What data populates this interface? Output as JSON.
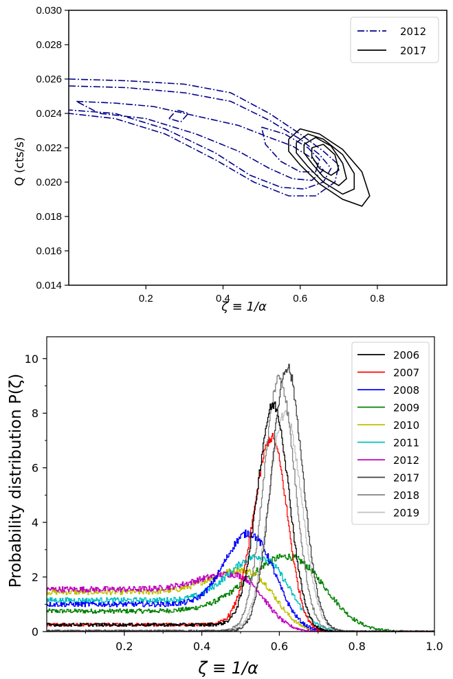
{
  "chart_data": [
    {
      "type": "contour",
      "xlabel": "ζ ≡ 1/α",
      "ylabel": "Q (cts/s)",
      "xlim": [
        0.0,
        0.98
      ],
      "ylim": [
        0.014,
        0.03
      ],
      "xticks": [
        0.2,
        0.4,
        0.6,
        0.8
      ],
      "xtick_labels": [
        "0.2",
        "0.4",
        "0.6",
        "0.8"
      ],
      "yticks": [
        0.014,
        0.016,
        0.018,
        0.02,
        0.022,
        0.024,
        0.026,
        0.028,
        0.03
      ],
      "ytick_labels": [
        "0.014",
        "0.016",
        "0.018",
        "0.020",
        "0.022",
        "0.024",
        "0.026",
        "0.028",
        "0.030"
      ],
      "legend_position": "top-right",
      "series": [
        {
          "name": "2012",
          "color": "#00008b",
          "linestyle": "dash-dot",
          "contours": [
            [
              [
                0.0,
                0.026
              ],
              [
                0.15,
                0.0259
              ],
              [
                0.3,
                0.0257
              ],
              [
                0.42,
                0.0252
              ],
              [
                0.52,
                0.024
              ],
              [
                0.6,
                0.0228
              ],
              [
                0.66,
                0.0218
              ],
              [
                0.7,
                0.021
              ],
              [
                0.69,
                0.02
              ],
              [
                0.64,
                0.0192
              ],
              [
                0.57,
                0.0192
              ],
              [
                0.48,
                0.02
              ],
              [
                0.38,
                0.0213
              ],
              [
                0.25,
                0.0228
              ],
              [
                0.12,
                0.0237
              ],
              [
                0.0,
                0.024
              ]
            ],
            [
              [
                0.0,
                0.0256
              ],
              [
                0.15,
                0.0255
              ],
              [
                0.3,
                0.0252
              ],
              [
                0.42,
                0.0247
              ],
              [
                0.52,
                0.0236
              ],
              [
                0.6,
                0.0225
              ],
              [
                0.65,
                0.0216
              ],
              [
                0.68,
                0.0208
              ],
              [
                0.66,
                0.02
              ],
              [
                0.61,
                0.0196
              ],
              [
                0.55,
                0.0197
              ],
              [
                0.47,
                0.0204
              ],
              [
                0.38,
                0.0217
              ],
              [
                0.25,
                0.0231
              ],
              [
                0.12,
                0.024
              ],
              [
                0.0,
                0.0242
              ]
            ],
            [
              [
                0.02,
                0.0247
              ],
              [
                0.12,
                0.0246
              ],
              [
                0.22,
                0.0244
              ],
              [
                0.34,
                0.0238
              ],
              [
                0.44,
                0.0233
              ],
              [
                0.52,
                0.0226
              ],
              [
                0.58,
                0.0221
              ],
              [
                0.63,
                0.0214
              ],
              [
                0.66,
                0.0207
              ],
              [
                0.63,
                0.0201
              ],
              [
                0.58,
                0.0202
              ],
              [
                0.52,
                0.0208
              ],
              [
                0.44,
                0.0218
              ],
              [
                0.33,
                0.0228
              ],
              [
                0.2,
                0.0237
              ],
              [
                0.08,
                0.024
              ],
              [
                0.02,
                0.0247
              ]
            ],
            [
              [
                0.5,
                0.0232
              ],
              [
                0.56,
                0.0228
              ],
              [
                0.62,
                0.022
              ],
              [
                0.65,
                0.0213
              ],
              [
                0.64,
                0.0206
              ],
              [
                0.6,
                0.0206
              ],
              [
                0.55,
                0.0212
              ],
              [
                0.51,
                0.0222
              ],
              [
                0.5,
                0.0232
              ]
            ],
            [
              [
                0.26,
                0.0237
              ],
              [
                0.28,
                0.0242
              ],
              [
                0.31,
                0.024
              ],
              [
                0.29,
                0.0235
              ],
              [
                0.26,
                0.0237
              ]
            ]
          ]
        },
        {
          "name": "2017",
          "color": "#000000",
          "linestyle": "solid",
          "contours": [
            [
              [
                0.57,
                0.0225
              ],
              [
                0.6,
                0.0231
              ],
              [
                0.65,
                0.0228
              ],
              [
                0.71,
                0.0219
              ],
              [
                0.76,
                0.0206
              ],
              [
                0.78,
                0.0192
              ],
              [
                0.76,
                0.0186
              ],
              [
                0.71,
                0.019
              ],
              [
                0.65,
                0.0199
              ],
              [
                0.6,
                0.021
              ],
              [
                0.57,
                0.0218
              ],
              [
                0.57,
                0.0225
              ]
            ],
            [
              [
                0.59,
                0.0223
              ],
              [
                0.62,
                0.0228
              ],
              [
                0.66,
                0.0225
              ],
              [
                0.71,
                0.0216
              ],
              [
                0.74,
                0.0205
              ],
              [
                0.74,
                0.0196
              ],
              [
                0.71,
                0.0193
              ],
              [
                0.66,
                0.02
              ],
              [
                0.62,
                0.0209
              ],
              [
                0.59,
                0.0217
              ],
              [
                0.59,
                0.0223
              ]
            ],
            [
              [
                0.61,
                0.0222
              ],
              [
                0.64,
                0.0226
              ],
              [
                0.68,
                0.0221
              ],
              [
                0.71,
                0.0211
              ],
              [
                0.72,
                0.0202
              ],
              [
                0.7,
                0.0198
              ],
              [
                0.66,
                0.0203
              ],
              [
                0.63,
                0.0211
              ],
              [
                0.61,
                0.0217
              ],
              [
                0.61,
                0.0222
              ]
            ],
            [
              [
                0.63,
                0.022
              ],
              [
                0.66,
                0.0222
              ],
              [
                0.69,
                0.0216
              ],
              [
                0.7,
                0.0207
              ],
              [
                0.68,
                0.0204
              ],
              [
                0.65,
                0.0208
              ],
              [
                0.63,
                0.0215
              ],
              [
                0.63,
                0.022
              ]
            ]
          ]
        }
      ]
    },
    {
      "type": "line",
      "style": "step-histogram",
      "xlabel": "ζ  ≡  1/α",
      "ylabel": "Probability distribution P(ζ)",
      "xlim": [
        0.0,
        1.0
      ],
      "ylim": [
        0,
        10.8
      ],
      "xticks": [
        0.2,
        0.4,
        0.6,
        0.8,
        1.0
      ],
      "xtick_labels": [
        "0.2",
        "0.4",
        "0.6",
        "0.8",
        "1.0"
      ],
      "yticks": [
        0,
        2,
        4,
        6,
        8,
        10
      ],
      "ytick_labels": [
        "0",
        "2",
        "4",
        "6",
        "8",
        "10"
      ],
      "legend_position": "top-right",
      "series": [
        {
          "name": "2006",
          "color": "#000000",
          "base": 0.25,
          "peak": 8.3,
          "center": 0.585,
          "sigma_left": 0.042,
          "sigma_right": 0.04
        },
        {
          "name": "2007",
          "color": "#ff0000",
          "base": 0.25,
          "peak": 7.1,
          "center": 0.58,
          "sigma_left": 0.045,
          "sigma_right": 0.04
        },
        {
          "name": "2008",
          "color": "#0000ff",
          "base": 1.0,
          "peak": 3.6,
          "center": 0.52,
          "sigma_left": 0.06,
          "sigma_right": 0.06
        },
        {
          "name": "2009",
          "color": "#008000",
          "base": 0.75,
          "peak": 2.75,
          "center": 0.62,
          "sigma_left": 0.1,
          "sigma_right": 0.085
        },
        {
          "name": "2010",
          "color": "#bfbf00",
          "base": 1.45,
          "peak": 2.25,
          "center": 0.5,
          "sigma_left": 0.08,
          "sigma_right": 0.065
        },
        {
          "name": "2011",
          "color": "#00bfbf",
          "base": 1.15,
          "peak": 2.75,
          "center": 0.545,
          "sigma_left": 0.075,
          "sigma_right": 0.065
        },
        {
          "name": "2012",
          "color": "#bf00bf",
          "base": 1.55,
          "peak": 2.1,
          "center": 0.47,
          "sigma_left": 0.08,
          "sigma_right": 0.065
        },
        {
          "name": "2017",
          "color": "#404040",
          "base": 0.02,
          "peak": 9.7,
          "center": 0.62,
          "sigma_left": 0.04,
          "sigma_right": 0.04
        },
        {
          "name": "2018",
          "color": "#808080",
          "base": 0.02,
          "peak": 9.3,
          "center": 0.6,
          "sigma_left": 0.04,
          "sigma_right": 0.04
        },
        {
          "name": "2019",
          "color": "#c0c0c0",
          "base": 0.02,
          "peak": 8.0,
          "center": 0.615,
          "sigma_left": 0.042,
          "sigma_right": 0.042
        }
      ]
    }
  ]
}
